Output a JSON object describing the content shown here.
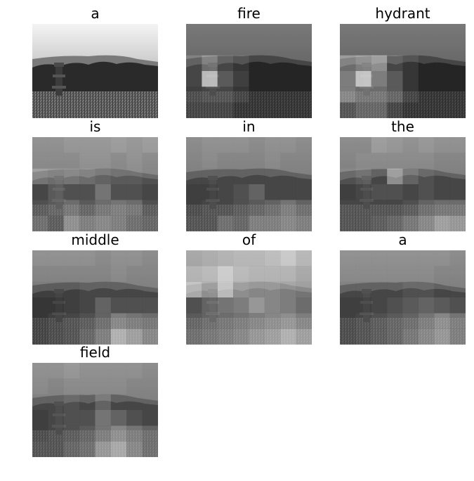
{
  "figure": {
    "words": [
      "a",
      "fire",
      "hydrant",
      "is",
      "in",
      "the",
      "middle",
      "of",
      "a",
      "field"
    ],
    "grid": {
      "columns": 8,
      "rows": 6
    },
    "image_description": "Grayscale photo of a fire hydrant standing in a grassy field with trees and hills behind it",
    "attention_maps": [
      null,
      [
        [
          0.1,
          0.1,
          0.1,
          0.1,
          0.1,
          0.1,
          0.1,
          0.1
        ],
        [
          0.1,
          0.1,
          0.1,
          0.1,
          0.1,
          0.1,
          0.1,
          0.1
        ],
        [
          0.3,
          0.5,
          0.3,
          0.2,
          0.1,
          0.1,
          0.1,
          0.1
        ],
        [
          0.3,
          0.95,
          0.4,
          0.25,
          0.1,
          0.1,
          0.1,
          0.1
        ],
        [
          0.25,
          0.3,
          0.3,
          0.2,
          0.1,
          0.1,
          0.1,
          0.1
        ],
        [
          0.2,
          0.2,
          0.2,
          0.1,
          0.1,
          0.1,
          0.1,
          0.1
        ]
      ],
      [
        [
          0.1,
          0.1,
          0.1,
          0.1,
          0.1,
          0.1,
          0.1,
          0.1
        ],
        [
          0.1,
          0.1,
          0.1,
          0.1,
          0.1,
          0.1,
          0.1,
          0.1
        ],
        [
          0.5,
          0.6,
          0.7,
          0.3,
          0.2,
          0.1,
          0.1,
          0.1
        ],
        [
          0.6,
          1.0,
          0.6,
          0.4,
          0.2,
          0.1,
          0.1,
          0.1
        ],
        [
          0.6,
          0.5,
          0.5,
          0.4,
          0.2,
          0.1,
          0.1,
          0.1
        ],
        [
          0.3,
          0.4,
          0.4,
          0.2,
          0.1,
          0.1,
          0.1,
          0.1
        ]
      ],
      [
        [
          0.35,
          0.35,
          0.4,
          0.4,
          0.4,
          0.45,
          0.4,
          0.45
        ],
        [
          0.35,
          0.35,
          0.35,
          0.4,
          0.4,
          0.35,
          0.4,
          0.35
        ],
        [
          0.55,
          0.5,
          0.55,
          0.5,
          0.45,
          0.4,
          0.4,
          0.35
        ],
        [
          0.3,
          0.4,
          0.35,
          0.35,
          0.55,
          0.35,
          0.35,
          0.3
        ],
        [
          0.35,
          0.4,
          0.5,
          0.4,
          0.5,
          0.55,
          0.5,
          0.35
        ],
        [
          0.45,
          0.35,
          0.65,
          0.55,
          0.6,
          0.55,
          0.45,
          0.4
        ]
      ],
      [
        [
          0.3,
          0.35,
          0.35,
          0.35,
          0.3,
          0.35,
          0.35,
          0.3
        ],
        [
          0.3,
          0.35,
          0.3,
          0.3,
          0.3,
          0.35,
          0.3,
          0.3
        ],
        [
          0.3,
          0.3,
          0.3,
          0.3,
          0.3,
          0.3,
          0.3,
          0.3
        ],
        [
          0.25,
          0.25,
          0.3,
          0.35,
          0.45,
          0.3,
          0.3,
          0.3
        ],
        [
          0.25,
          0.3,
          0.3,
          0.35,
          0.4,
          0.45,
          0.55,
          0.45
        ],
        [
          0.3,
          0.3,
          0.45,
          0.4,
          0.55,
          0.55,
          0.6,
          0.55
        ]
      ],
      [
        [
          0.3,
          0.3,
          0.45,
          0.4,
          0.35,
          0.4,
          0.35,
          0.35
        ],
        [
          0.3,
          0.35,
          0.35,
          0.35,
          0.35,
          0.35,
          0.3,
          0.3
        ],
        [
          0.35,
          0.4,
          0.3,
          0.7,
          0.45,
          0.35,
          0.3,
          0.3
        ],
        [
          0.25,
          0.3,
          0.35,
          0.35,
          0.3,
          0.35,
          0.3,
          0.3
        ],
        [
          0.3,
          0.3,
          0.3,
          0.3,
          0.35,
          0.45,
          0.5,
          0.5
        ],
        [
          0.3,
          0.3,
          0.35,
          0.4,
          0.5,
          0.6,
          0.75,
          0.7
        ]
      ],
      [
        [
          0.35,
          0.35,
          0.35,
          0.35,
          0.3,
          0.35,
          0.35,
          0.3
        ],
        [
          0.3,
          0.3,
          0.3,
          0.3,
          0.3,
          0.35,
          0.3,
          0.3
        ],
        [
          0.25,
          0.25,
          0.25,
          0.3,
          0.3,
          0.3,
          0.3,
          0.3
        ],
        [
          0.2,
          0.2,
          0.25,
          0.3,
          0.45,
          0.35,
          0.35,
          0.35
        ],
        [
          0.2,
          0.25,
          0.3,
          0.35,
          0.45,
          0.6,
          0.55,
          0.5
        ],
        [
          0.2,
          0.25,
          0.3,
          0.4,
          0.55,
          0.85,
          0.75,
          0.6
        ]
      ],
      [
        [
          0.55,
          0.6,
          0.65,
          0.7,
          0.7,
          0.75,
          0.85,
          0.7
        ],
        [
          0.7,
          0.75,
          0.9,
          0.75,
          0.7,
          0.7,
          0.7,
          0.6
        ],
        [
          0.85,
          0.7,
          0.95,
          0.7,
          0.65,
          0.65,
          0.6,
          0.55
        ],
        [
          0.35,
          0.45,
          0.55,
          0.6,
          0.75,
          0.65,
          0.6,
          0.5
        ],
        [
          0.4,
          0.45,
          0.5,
          0.55,
          0.6,
          0.65,
          0.7,
          0.6
        ],
        [
          0.45,
          0.5,
          0.55,
          0.6,
          0.7,
          0.75,
          0.85,
          0.75
        ]
      ],
      [
        [
          0.35,
          0.35,
          0.35,
          0.35,
          0.35,
          0.35,
          0.35,
          0.3
        ],
        [
          0.35,
          0.35,
          0.35,
          0.35,
          0.35,
          0.35,
          0.3,
          0.3
        ],
        [
          0.3,
          0.3,
          0.3,
          0.3,
          0.35,
          0.35,
          0.3,
          0.3
        ],
        [
          0.25,
          0.25,
          0.3,
          0.35,
          0.4,
          0.45,
          0.4,
          0.35
        ],
        [
          0.25,
          0.3,
          0.35,
          0.4,
          0.45,
          0.55,
          0.65,
          0.55
        ],
        [
          0.25,
          0.3,
          0.35,
          0.4,
          0.5,
          0.6,
          0.7,
          0.55
        ]
      ],
      [
        [
          0.35,
          0.35,
          0.4,
          0.35,
          0.35,
          0.35,
          0.35,
          0.3
        ],
        [
          0.35,
          0.3,
          0.35,
          0.35,
          0.35,
          0.35,
          0.3,
          0.3
        ],
        [
          0.3,
          0.3,
          0.35,
          0.3,
          0.45,
          0.3,
          0.3,
          0.3
        ],
        [
          0.25,
          0.3,
          0.35,
          0.35,
          0.55,
          0.45,
          0.35,
          0.3
        ],
        [
          0.25,
          0.3,
          0.35,
          0.4,
          0.55,
          0.65,
          0.55,
          0.45
        ],
        [
          0.3,
          0.3,
          0.4,
          0.45,
          0.7,
          0.8,
          0.6,
          0.45
        ]
      ]
    ]
  }
}
